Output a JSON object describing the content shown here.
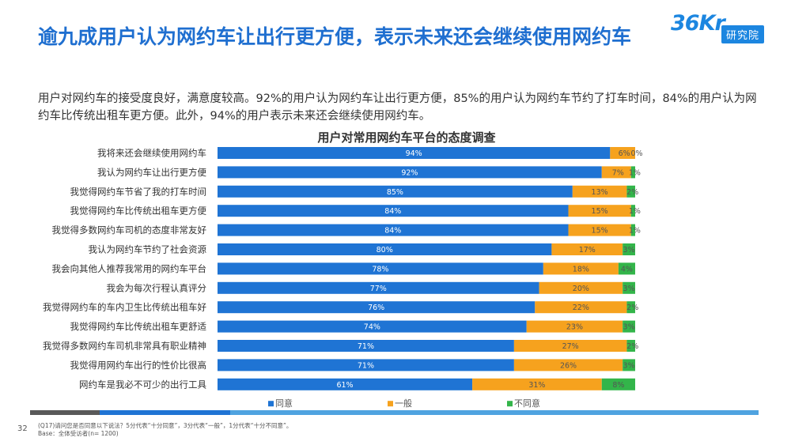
{
  "page": {
    "title": "逾九成用户认为网约车让出行更方便，表示未来还会继续使用网约车",
    "summary": "用户对网约车的接受度良好，满意度较高。92%的用户认为网约车让出行更方便，85%的用户认为网约车节约了打车时间，84%的用户认为网约车比传统出租车更方便。此外，94%的用户表示未来还会继续使用网约车。",
    "logo_mark": "36Kr",
    "logo_badge": "研究院",
    "page_number": "32",
    "footnote_line1": "(Q17)请问您是否同意以下说法？5分代表“十分同意”，3分代表“一般”，1分代表“十分不同意”。",
    "footnote_line2": "Base：全体受访者(n= 1200)",
    "colors": {
      "title": "#1f6fd0",
      "bar_blue": "#1f74d4",
      "bar_orange": "#f6a21e",
      "bar_green": "#33b54a",
      "bottom_dark": "#595959",
      "bottom_blue": "#1f74d4",
      "bottom_light": "#4fa3e0"
    }
  },
  "chart_data": {
    "type": "bar",
    "orientation": "horizontal",
    "stacked": true,
    "percent": true,
    "title": "用户对常用网约车平台的态度调查",
    "categories": [
      "我将来还会继续使用网约车",
      "我认为网约车让出行更方便",
      "我觉得网约车节省了我的打车时间",
      "我觉得网约车比传统出租车更方便",
      "我觉得多数网约车司机的态度非常友好",
      "我认为网约车节约了社会资源",
      "我会向其他人推荐我常用的网约车平台",
      "我会为每次行程认真评分",
      "我觉得网约车的车内卫生比传统出租车好",
      "我觉得网约车比传统出租车更舒适",
      "我觉得多数网约车司机非常具有职业精神",
      "我觉得用网约车出行的性价比很高",
      "网约车是我必不可少的出行工具"
    ],
    "series": [
      {
        "name": "同意",
        "color": "#1f74d4",
        "values": [
          94,
          92,
          85,
          84,
          84,
          80,
          78,
          77,
          76,
          74,
          71,
          71,
          61
        ]
      },
      {
        "name": "一般",
        "color": "#f6a21e",
        "values": [
          6,
          7,
          13,
          15,
          15,
          17,
          18,
          20,
          22,
          23,
          27,
          26,
          31
        ]
      },
      {
        "name": "不同意",
        "color": "#33b54a",
        "values": [
          0,
          1,
          2,
          1,
          1,
          3,
          4,
          3,
          2,
          3,
          2,
          3,
          8
        ]
      }
    ],
    "xlim": [
      0,
      100
    ],
    "legend_position": "bottom"
  }
}
